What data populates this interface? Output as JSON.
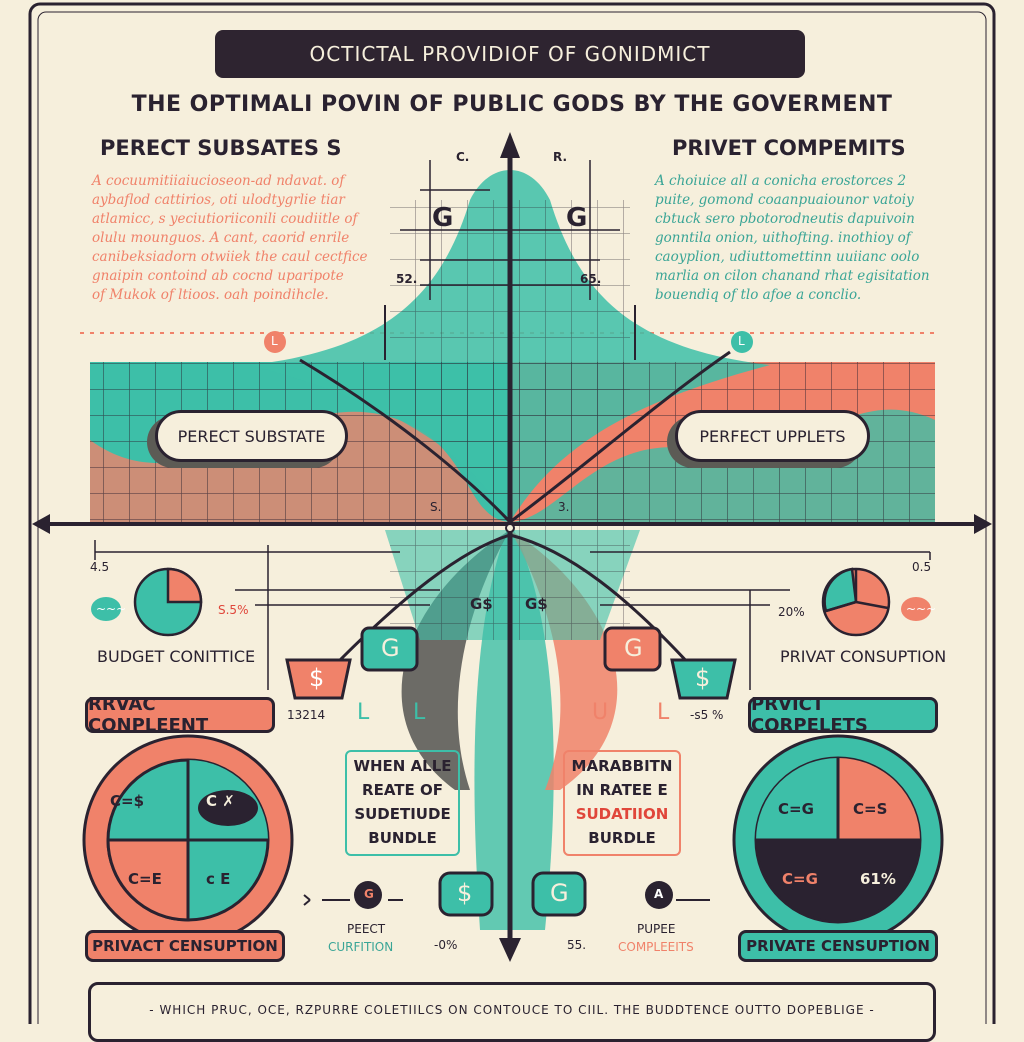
{
  "colors": {
    "teal": "#3dbfa8",
    "coral": "#f0826a",
    "dark": "#2a2230",
    "background": "#f6efdc"
  },
  "banner": "OCTICTAL PROVIDIOF OF GONIDMICT",
  "subtitle": "THE OPTIMALI POVIN OF  PUBLIC GODS BY THE GOVERMENT",
  "left_heading": "PERECT SUBSATES S",
  "right_heading": "PRIVET COMPEMITS",
  "left_paragraph": [
    {
      "text": "A cocuumitiiaiuciosеоп-ad ndavat. of",
      "color": "coral"
    },
    {
      "text": "aybaflod cattirios, oti ulodtygrlie tiar",
      "color": "coral"
    },
    {
      "text": "atlamicc, s yeciutioriiconili coudiitle of",
      "color": "coral"
    },
    {
      "text": "olulu mounguos. A cant, caorid enrile",
      "color": "coral"
    },
    {
      "text": "canibeksiadorn otwiiek the caul cectfice",
      "color": "coral"
    },
    {
      "text": "gnaipin contoind ab cocnd uparipote",
      "color": "coral"
    },
    {
      "text": "of Mukok of ltioos.    oah poindihcle.",
      "color": "coral"
    }
  ],
  "right_paragraph": [
    "A choiuice all a conicha erostorces 2",
    "puite, gomond coaanpuaiounor vatoiy",
    "cbtuck sero pbotorodneutis dapuivoin",
    "gonntila onion, uithofting. inothioy of",
    "caoyplion, udiuttomettinn uuiianc oolo",
    "marlia on cilon chanand rhat egisitation",
    "bouendiq of tlo afoe a conclio."
  ],
  "axis_labels": {
    "c": "C.",
    "r": "R.",
    "g_left": "G",
    "g_right": "G",
    "v_left": "52.",
    "v_right": "65.",
    "l_left": "L",
    "l_right": "L",
    "origin_left": "S.",
    "origin_right": "3.",
    "x_left": "4.5",
    "x_right": "0.5",
    "g_low_left": "G$",
    "g_low_right": "G$"
  },
  "pills": {
    "left": "PERECT SUBSTATE",
    "right": "PERFECT UPPLETS"
  },
  "pie_left": {
    "label": "BUDGET CONITTICE",
    "pct": "S.5%",
    "badge": "~~~"
  },
  "pie_right": {
    "label": "PRIVAT CONSUPTION",
    "pct": "20%",
    "badge": "~~~"
  },
  "buttons": {
    "left_mid": "RRVAC CONPLEENT",
    "right_mid": "PRVICT CORPELETS",
    "left_bottom": "PRIVACT CENSUPTION",
    "right_bottom": "PRIVATE CENSUPTION"
  },
  "numbers": {
    "left": "13214",
    "right": "-s5 %",
    "bottom_left": "-0%",
    "bottom_right": "55."
  },
  "tags": {
    "l1": "L",
    "l2": "L",
    "l3": "U",
    "l4": "L"
  },
  "money_tags": [
    "$",
    "G",
    "G",
    "$",
    "$",
    "G"
  ],
  "boxes": {
    "left": [
      "WHEN ALLE",
      "REATE OF",
      "SUDETIUDE",
      "BUNDLE"
    ],
    "right": [
      "MARABBITN",
      "IN RATEE E",
      "SUDATIION",
      "BURDLE"
    ]
  },
  "big_pie_left": {
    "q1": "C=$",
    "q2": "C ✗",
    "q3": "C=E",
    "q4": "c E"
  },
  "big_pie_right": {
    "q1": "C=G",
    "q2": "C=S",
    "q3": "C=G",
    "q4": "61%"
  },
  "bottom_left_caption": {
    "badge": "G",
    "line1": "PEECT",
    "line2": "CURFITION"
  },
  "bottom_right_caption": {
    "badge": "A",
    "line1": "PUPEE",
    "line2": "COMPLEEITS"
  },
  "footer": "- WHICH PRUC, OCE, RZPURRE COLETIILCS ON CONTOUCE TO CIIL. THE BUDDTENCE OUTTO DOPEBLIGE -"
}
